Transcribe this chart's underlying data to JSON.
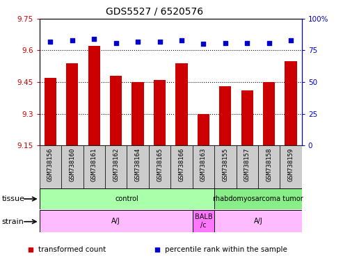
{
  "title": "GDS5527 / 6520576",
  "samples": [
    "GSM738156",
    "GSM738160",
    "GSM738161",
    "GSM738162",
    "GSM738164",
    "GSM738165",
    "GSM738166",
    "GSM738163",
    "GSM738155",
    "GSM738157",
    "GSM738158",
    "GSM738159"
  ],
  "bar_values": [
    9.47,
    9.54,
    9.62,
    9.48,
    9.45,
    9.46,
    9.54,
    9.3,
    9.43,
    9.41,
    9.45,
    9.55
  ],
  "percentile_values": [
    82,
    83,
    84,
    81,
    82,
    82,
    83,
    80,
    81,
    81,
    81,
    83
  ],
  "bar_color": "#cc0000",
  "dot_color": "#0000cc",
  "ylim_left": [
    9.15,
    9.75
  ],
  "ylim_right": [
    0,
    100
  ],
  "yticks_left": [
    9.15,
    9.3,
    9.45,
    9.6,
    9.75
  ],
  "yticks_right": [
    0,
    25,
    50,
    75,
    100
  ],
  "ytick_labels_right": [
    "0",
    "25",
    "50",
    "75",
    "100%"
  ],
  "grid_lines": [
    9.3,
    9.45,
    9.6
  ],
  "tissue_groups": [
    {
      "label": "control",
      "start": 0,
      "end": 8,
      "color": "#aaffaa"
    },
    {
      "label": "rhabdomyosarcoma tumor",
      "start": 8,
      "end": 12,
      "color": "#88ee88"
    }
  ],
  "strain_groups": [
    {
      "label": "A/J",
      "start": 0,
      "end": 7,
      "color": "#ffbbff"
    },
    {
      "label": "BALB\n/c",
      "start": 7,
      "end": 8,
      "color": "#ff77ff"
    },
    {
      "label": "A/J",
      "start": 8,
      "end": 12,
      "color": "#ffbbff"
    }
  ],
  "legend_items": [
    {
      "color": "#cc0000",
      "marker": "s",
      "label": "transformed count"
    },
    {
      "color": "#0000cc",
      "marker": "s",
      "label": "percentile rank within the sample"
    }
  ],
  "tissue_label": "tissue",
  "strain_label": "strain",
  "left_axis_color": "#cc0000",
  "right_axis_color": "#0000cc",
  "tick_bg_color": "#cccccc",
  "border_color": "#000000"
}
